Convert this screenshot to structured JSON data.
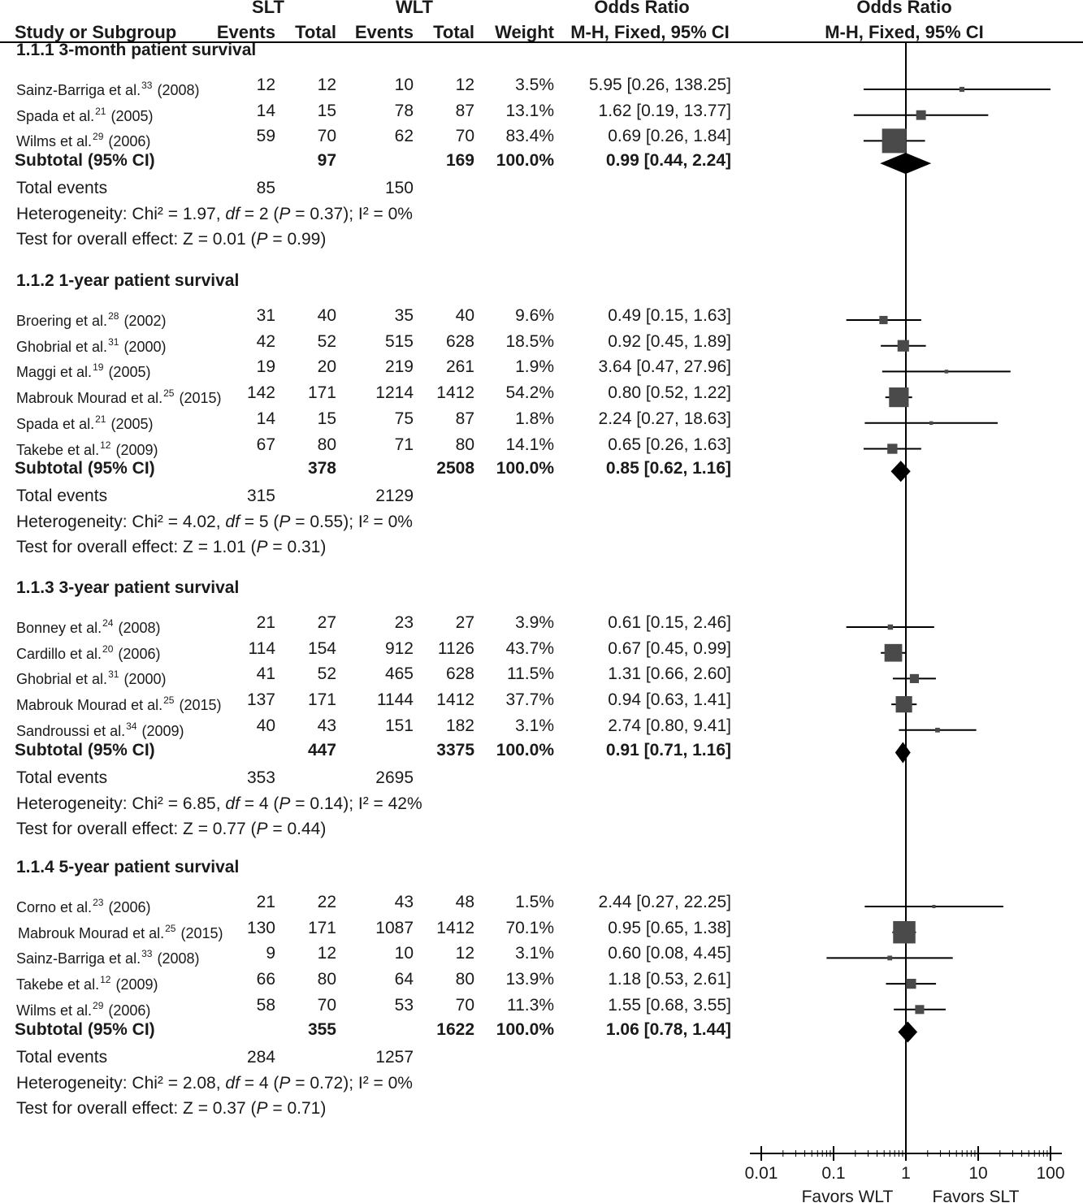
{
  "chart_data": {
    "type": "forest",
    "columns": {
      "slt_group": "SLT",
      "wlt_group": "WLT",
      "study": "Study or Subgroup",
      "events": "Events",
      "total": "Total",
      "weight": "Weight",
      "or_title": "Odds Ratio",
      "or_method": "M-H, Fixed, 95% CI"
    },
    "xaxis": {
      "scale": "log",
      "range": [
        0.01,
        100
      ],
      "ticks": [
        {
          "value": 0.01,
          "label": "0.01"
        },
        {
          "value": 0.1,
          "label": "0.1"
        },
        {
          "value": 1,
          "label": "1"
        },
        {
          "value": 10,
          "label": "10"
        },
        {
          "value": 100,
          "label": "100"
        }
      ],
      "favors_left": "Favors WLT",
      "favors_right": "Favors SLT"
    },
    "groups": [
      {
        "title": "1.1.1 3-month patient survival",
        "studies": [
          {
            "author": "Sainz-Barriga et al.",
            "ref": "33",
            "year": "(2008)",
            "e1": "12",
            "n1": "12",
            "e2": "10",
            "n2": "12",
            "weight": "3.5%",
            "or_text": "5.95 [0.26, 138.25]",
            "or": 5.95,
            "lo": 0.26,
            "hi": 138.25,
            "w": 3.5
          },
          {
            "author": "Spada et al.",
            "ref": "21",
            "year": "(2005)",
            "e1": "14",
            "n1": "15",
            "e2": "78",
            "n2": "87",
            "weight": "13.1%",
            "or_text": "1.62 [0.19, 13.77]",
            "or": 1.62,
            "lo": 0.19,
            "hi": 13.77,
            "w": 13.1
          },
          {
            "author": "Wilms et al.",
            "ref": "29",
            "year": "(2006)",
            "e1": "59",
            "n1": "70",
            "e2": "62",
            "n2": "70",
            "weight": "83.4%",
            "or_text": "0.69 [0.26, 1.84]",
            "or": 0.69,
            "lo": 0.26,
            "hi": 1.84,
            "w": 83.4
          }
        ],
        "subtotal": {
          "label": "Subtotal (95% CI)",
          "n1": "97",
          "n2": "169",
          "weight": "100.0%",
          "or_text": "0.99 [0.44, 2.24]",
          "or": 0.99,
          "lo": 0.44,
          "hi": 2.24
        },
        "total_events": {
          "label": "Total events",
          "e1": "85",
          "e2": "150"
        },
        "heterogeneity": {
          "prefix": "Heterogeneity: Chi² = 1.97, ",
          "df_label": "df",
          "mid": " = 2 (",
          "p_label": "P",
          "suffix": " = 0.37); I² = 0%"
        },
        "overall": {
          "prefix": "Test for overall effect: Z = 0.01 (",
          "p_label": "P",
          "suffix": " = 0.99)"
        }
      },
      {
        "title": "1.1.2 1-year patient survival",
        "studies": [
          {
            "author": "Broering et al.",
            "ref": "28",
            "year": "(2002)",
            "e1": "31",
            "n1": "40",
            "e2": "35",
            "n2": "40",
            "weight": "9.6%",
            "or_text": "0.49 [0.15, 1.63]",
            "or": 0.49,
            "lo": 0.15,
            "hi": 1.63,
            "w": 9.6
          },
          {
            "author": "Ghobrial et al.",
            "ref": "31",
            "year": "(2000)",
            "e1": "42",
            "n1": "52",
            "e2": "515",
            "n2": "628",
            "weight": "18.5%",
            "or_text": "0.92 [0.45, 1.89]",
            "or": 0.92,
            "lo": 0.45,
            "hi": 1.89,
            "w": 18.5
          },
          {
            "author": "Maggi et al.",
            "ref": "19",
            "year": "(2005)",
            "e1": "19",
            "n1": "20",
            "e2": "219",
            "n2": "261",
            "weight": "1.9%",
            "or_text": "3.64 [0.47, 27.96]",
            "or": 3.64,
            "lo": 0.47,
            "hi": 27.96,
            "w": 1.9
          },
          {
            "author": "Mabrouk Mourad et al.",
            "ref": "25",
            "year": "(2015)",
            "e1": "142",
            "n1": "171",
            "e2": "1214",
            "n2": "1412",
            "weight": "54.2%",
            "or_text": "0.80 [0.52, 1.22]",
            "or": 0.8,
            "lo": 0.52,
            "hi": 1.22,
            "w": 54.2
          },
          {
            "author": "Spada et al.",
            "ref": "21",
            "year": "(2005)",
            "e1": "14",
            "n1": "15",
            "e2": "75",
            "n2": "87",
            "weight": "1.8%",
            "or_text": "2.24 [0.27, 18.63]",
            "or": 2.24,
            "lo": 0.27,
            "hi": 18.63,
            "w": 1.8
          },
          {
            "author": "Takebe et al.",
            "ref": "12",
            "year": "(2009)",
            "e1": "67",
            "n1": "80",
            "e2": "71",
            "n2": "80",
            "weight": "14.1%",
            "or_text": "0.65 [0.26, 1.63]",
            "or": 0.65,
            "lo": 0.26,
            "hi": 1.63,
            "w": 14.1
          }
        ],
        "subtotal": {
          "label": "Subtotal (95% CI)",
          "n1": "378",
          "n2": "2508",
          "weight": "100.0%",
          "or_text": "0.85 [0.62, 1.16]",
          "or": 0.85,
          "lo": 0.62,
          "hi": 1.16
        },
        "total_events": {
          "label": "Total events",
          "e1": "315",
          "e2": "2129"
        },
        "heterogeneity": {
          "prefix": "Heterogeneity: Chi² = 4.02, ",
          "df_label": "df",
          "mid": " = 5 (",
          "p_label": "P",
          "suffix": " = 0.55); I² = 0%"
        },
        "overall": {
          "prefix": "Test for overall effect: Z = 1.01 (",
          "p_label": "P",
          "suffix": " = 0.31)"
        }
      },
      {
        "title": "1.1.3 3-year patient survival",
        "studies": [
          {
            "author": "Bonney et al.",
            "ref": "24",
            "year": "(2008)",
            "e1": "21",
            "n1": "27",
            "e2": "23",
            "n2": "27",
            "weight": "3.9%",
            "or_text": "0.61 [0.15, 2.46]",
            "or": 0.61,
            "lo": 0.15,
            "hi": 2.46,
            "w": 3.9
          },
          {
            "author": "Cardillo et al.",
            "ref": "20",
            "year": "(2006)",
            "e1": "114",
            "n1": "154",
            "e2": "912",
            "n2": "1126",
            "weight": "43.7%",
            "or_text": "0.67 [0.45, 0.99]",
            "or": 0.67,
            "lo": 0.45,
            "hi": 0.99,
            "w": 43.7
          },
          {
            "author": "Ghobrial et al.",
            "ref": "31",
            "year": "(2000)",
            "e1": "41",
            "n1": "52",
            "e2": "465",
            "n2": "628",
            "weight": "11.5%",
            "or_text": "1.31 [0.66, 2.60]",
            "or": 1.31,
            "lo": 0.66,
            "hi": 2.6,
            "w": 11.5
          },
          {
            "author": "Mabrouk Mourad et al.",
            "ref": "25",
            "year": "(2015)",
            "e1": "137",
            "n1": "171",
            "e2": "1144",
            "n2": "1412",
            "weight": "37.7%",
            "or_text": "0.94 [0.63, 1.41]",
            "or": 0.94,
            "lo": 0.63,
            "hi": 1.41,
            "w": 37.7
          },
          {
            "author": "Sandroussi et al.",
            "ref": "34",
            "year": "(2009)",
            "e1": "40",
            "n1": "43",
            "e2": "151",
            "n2": "182",
            "weight": "3.1%",
            "or_text": "2.74 [0.80, 9.41]",
            "or": 2.74,
            "lo": 0.8,
            "hi": 9.41,
            "w": 3.1
          }
        ],
        "subtotal": {
          "label": "Subtotal (95% CI)",
          "n1": "447",
          "n2": "3375",
          "weight": "100.0%",
          "or_text": "0.91 [0.71, 1.16]",
          "or": 0.91,
          "lo": 0.71,
          "hi": 1.16
        },
        "total_events": {
          "label": "Total events",
          "e1": "353",
          "e2": "2695"
        },
        "heterogeneity": {
          "prefix": "Heterogeneity: Chi² = 6.85, ",
          "df_label": "df",
          "mid": " = 4 (",
          "p_label": "P",
          "suffix": " = 0.14); I² = 42%"
        },
        "overall": {
          "prefix": "Test for overall effect: Z = 0.77 (",
          "p_label": "P",
          "suffix": " = 0.44)"
        }
      },
      {
        "title": "1.1.4 5-year patient survival",
        "studies": [
          {
            "author": "Corno et al.",
            "ref": "23",
            "year": "(2006)",
            "e1": "21",
            "n1": "22",
            "e2": "43",
            "n2": "48",
            "weight": "1.5%",
            "or_text": "2.44 [0.27, 22.25]",
            "or": 2.44,
            "lo": 0.27,
            "hi": 22.25,
            "w": 1.5
          },
          {
            "author": "Mabrouk Mourad et al.",
            "ref": "25",
            "year": "(2015)",
            "e1": "130",
            "n1": "171",
            "e2": "1087",
            "n2": "1412",
            "weight": "70.1%",
            "or_text": "0.95 [0.65, 1.38]",
            "or": 0.95,
            "lo": 0.65,
            "hi": 1.38,
            "w": 70.1
          },
          {
            "author": "Sainz-Barriga et al.",
            "ref": "33",
            "year": "(2008)",
            "e1": "9",
            "n1": "12",
            "e2": "10",
            "n2": "12",
            "weight": "3.1%",
            "or_text": "0.60 [0.08, 4.45]",
            "or": 0.6,
            "lo": 0.08,
            "hi": 4.45,
            "w": 3.1
          },
          {
            "author": "Takebe et al.",
            "ref": "12",
            "year": "(2009)",
            "e1": "66",
            "n1": "80",
            "e2": "64",
            "n2": "80",
            "weight": "13.9%",
            "or_text": "1.18 [0.53, 2.61]",
            "or": 1.18,
            "lo": 0.53,
            "hi": 2.61,
            "w": 13.9
          },
          {
            "author": "Wilms et al.",
            "ref": "29",
            "year": "(2006)",
            "e1": "58",
            "n1": "70",
            "e2": "53",
            "n2": "70",
            "weight": "11.3%",
            "or_text": "1.55 [0.68, 3.55]",
            "or": 1.55,
            "lo": 0.68,
            "hi": 3.55,
            "w": 11.3
          }
        ],
        "subtotal": {
          "label": "Subtotal (95% CI)",
          "n1": "355",
          "n2": "1622",
          "weight": "100.0%",
          "or_text": "1.06 [0.78, 1.44]",
          "or": 1.06,
          "lo": 0.78,
          "hi": 1.44
        },
        "total_events": {
          "label": "Total events",
          "e1": "284",
          "e2": "1257"
        },
        "heterogeneity": {
          "prefix": "Heterogeneity: Chi² = 2.08, ",
          "df_label": "df",
          "mid": " = 4 (",
          "p_label": "P",
          "suffix": " = 0.72); I² = 0%"
        },
        "overall": {
          "prefix": "Test for overall effect: Z = 0.37 (",
          "p_label": "P",
          "suffix": " = 0.71)"
        }
      }
    ]
  },
  "colors": {
    "text": "#1a1a1a",
    "marker": "#4a4a4a",
    "diamond": "#000000",
    "line": "#000000"
  }
}
